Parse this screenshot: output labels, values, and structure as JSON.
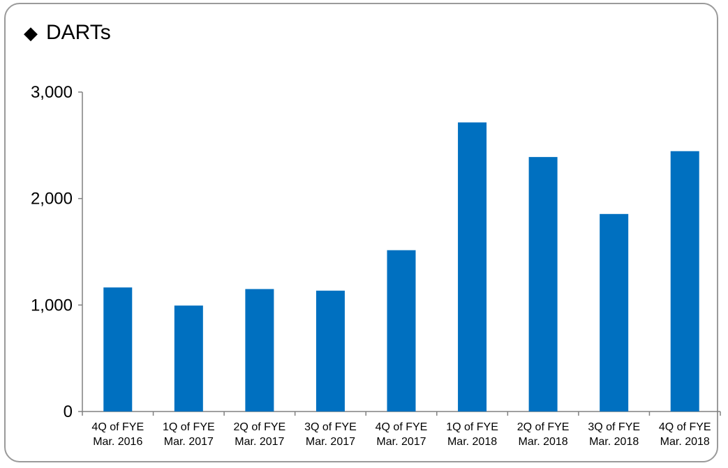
{
  "chart_data": {
    "type": "bar",
    "title": "DARTs",
    "title_marker": "◆",
    "categories": [
      [
        "4Q of FYE",
        "Mar. 2016"
      ],
      [
        "1Q of FYE",
        "Mar. 2017"
      ],
      [
        "2Q of FYE",
        "Mar. 2017"
      ],
      [
        "3Q of FYE",
        "Mar. 2017"
      ],
      [
        "4Q of FYE",
        "Mar. 2017"
      ],
      [
        "1Q of FYE",
        "Mar. 2018"
      ],
      [
        "2Q of FYE",
        "Mar. 2018"
      ],
      [
        "3Q of FYE",
        "Mar. 2018"
      ],
      [
        "4Q of FYE",
        "Mar. 2018"
      ]
    ],
    "values": [
      1165,
      995,
      1150,
      1135,
      1515,
      2715,
      2390,
      1855,
      2445
    ],
    "ylim": [
      0,
      3000
    ],
    "yticks": [
      0,
      1000,
      2000,
      3000
    ],
    "ytick_labels": [
      "0",
      "1,000",
      "2,000",
      "3,000"
    ],
    "bar_color": "#0070C0",
    "grid": false
  }
}
